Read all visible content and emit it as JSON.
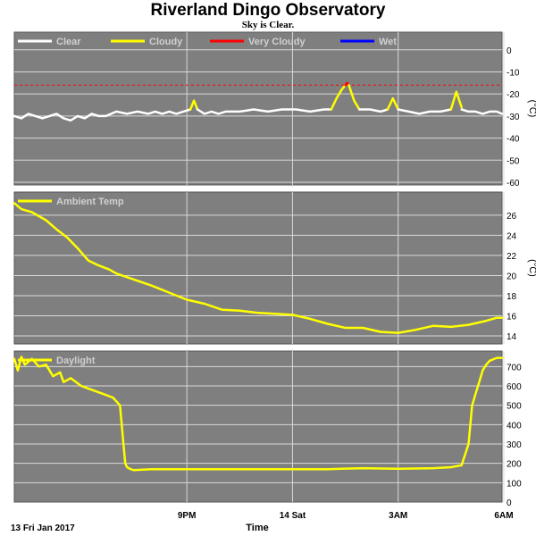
{
  "title": "Riverland Dingo Observatory",
  "subtitle": "Sky is Clear.",
  "colors": {
    "panel_bg": "#7f7f7f",
    "grid": "#d8d8d8",
    "clear": "#ffffff",
    "cloudy": "#ffff00",
    "very_cloudy": "#ff0000",
    "wet": "#0000ff",
    "legend_text": "#d0d0d0"
  },
  "time_axis": {
    "label": "Time",
    "start_label": "13 Fri Jan 2017",
    "tick_labels": [
      {
        "hour": 3,
        "label": "9PM"
      },
      {
        "hour": 6,
        "label": "14 Sat"
      },
      {
        "hour": 9,
        "label": "3AM"
      },
      {
        "hour": 12,
        "label": "6AM"
      }
    ],
    "hours_range": [
      -1.9,
      11.95
    ]
  },
  "chart_data": [
    {
      "type": "line",
      "name": "sky",
      "ylabel": "(°C)",
      "ylim": [
        -60,
        8
      ],
      "yticks": [
        0,
        -10,
        -20,
        -30,
        -40,
        -50,
        -60
      ],
      "grid": true,
      "legend_position": "top-left",
      "legend": [
        {
          "label": "Clear",
          "color": "#ffffff"
        },
        {
          "label": "Cloudy",
          "color": "#ffff00"
        },
        {
          "label": "Very Cloudy",
          "color": "#ff0000"
        },
        {
          "label": "Wet",
          "color": "#0000ff"
        }
      ],
      "threshold": {
        "value": -16,
        "color": "#ff0000",
        "style": "dashed"
      },
      "series": [
        {
          "status": "clear",
          "x": [
            -1.9,
            -1.7,
            -1.5,
            -1.3,
            -1.1,
            -0.9,
            -0.7,
            -0.5,
            -0.3,
            -0.1,
            0.1,
            0.3,
            0.5,
            0.7,
            1.0,
            1.3,
            1.6,
            1.9,
            2.1,
            2.3,
            2.5,
            2.7,
            2.9,
            3.1
          ],
          "y": [
            -30,
            -31,
            -29,
            -30,
            -31,
            -30,
            -29,
            -31,
            -32,
            -30,
            -31,
            -29,
            -30,
            -30,
            -28,
            -29,
            -28,
            -29,
            -28,
            -29,
            -28,
            -29,
            -28,
            -27
          ]
        },
        {
          "status": "cloudy",
          "x": [
            3.1,
            3.2,
            3.3
          ],
          "y": [
            -27,
            -23,
            -27
          ]
        },
        {
          "status": "clear",
          "x": [
            3.3,
            3.5,
            3.7,
            3.9,
            4.1,
            4.5,
            4.9,
            5.3,
            5.7,
            6.1,
            6.5,
            6.9,
            7.1
          ],
          "y": [
            -27,
            -29,
            -28,
            -29,
            -28,
            -28,
            -27,
            -28,
            -27,
            -27,
            -28,
            -27,
            -27
          ]
        },
        {
          "status": "cloudy",
          "x": [
            7.1,
            7.25,
            7.4,
            7.5
          ],
          "y": [
            -27,
            -22,
            -18,
            -16
          ]
        },
        {
          "status": "very_cloudy",
          "x": [
            7.5,
            7.55,
            7.6
          ],
          "y": [
            -16,
            -15,
            -16
          ]
        },
        {
          "status": "cloudy",
          "x": [
            7.6,
            7.75,
            7.9
          ],
          "y": [
            -16,
            -23,
            -27
          ]
        },
        {
          "status": "clear",
          "x": [
            7.9,
            8.2,
            8.5,
            8.7
          ],
          "y": [
            -27,
            -27,
            -28,
            -27
          ]
        },
        {
          "status": "cloudy",
          "x": [
            8.7,
            8.85,
            9.0
          ],
          "y": [
            -27,
            -22,
            -27
          ]
        },
        {
          "status": "clear",
          "x": [
            9.0,
            9.3,
            9.6,
            9.9,
            10.2,
            10.5
          ],
          "y": [
            -27,
            -28,
            -29,
            -28,
            -28,
            -27
          ]
        },
        {
          "status": "cloudy",
          "x": [
            10.5,
            10.65,
            10.8
          ],
          "y": [
            -27,
            -19,
            -26
          ]
        },
        {
          "status": "clear",
          "x": [
            10.8,
            11.0,
            11.2,
            11.4,
            11.6,
            11.8,
            11.95
          ],
          "y": [
            -27,
            -28,
            -28,
            -29,
            -28,
            -28,
            -29
          ]
        }
      ]
    },
    {
      "type": "line",
      "name": "ambient",
      "ylabel": "(°C)",
      "ylim": [
        13.2,
        28.3
      ],
      "yticks": [
        14,
        16,
        18,
        20,
        22,
        24,
        26
      ],
      "grid": true,
      "legend_position": "top-left",
      "legend": [
        {
          "label": "Ambient Temp",
          "color": "#ffff00"
        }
      ],
      "series": [
        {
          "name": "Ambient Temp",
          "color": "#ffff00",
          "x": [
            -1.9,
            -1.7,
            -1.4,
            -1.0,
            -0.7,
            -0.4,
            -0.1,
            0.2,
            0.5,
            0.8,
            1.0,
            1.5,
            2.0,
            2.5,
            3.0,
            3.5,
            4.0,
            4.5,
            5.0,
            5.5,
            6.0,
            6.5,
            7.0,
            7.5,
            8.0,
            8.5,
            9.0,
            9.5,
            10.0,
            10.5,
            11.0,
            11.5,
            11.8,
            11.95
          ],
          "y": [
            27.2,
            26.6,
            26.3,
            25.5,
            24.6,
            23.8,
            22.7,
            21.5,
            21.0,
            20.6,
            20.2,
            19.6,
            19.0,
            18.3,
            17.6,
            17.2,
            16.6,
            16.5,
            16.3,
            16.2,
            16.1,
            15.7,
            15.2,
            14.8,
            14.8,
            14.4,
            14.3,
            14.6,
            15.0,
            14.9,
            15.1,
            15.5,
            15.8,
            15.8
          ]
        }
      ]
    },
    {
      "type": "line",
      "name": "daylight",
      "ylabel": "",
      "ylim": [
        0,
        780
      ],
      "yticks": [
        0,
        100,
        200,
        300,
        400,
        500,
        600,
        700
      ],
      "grid": true,
      "legend_position": "top-left",
      "legend": [
        {
          "label": "Daylight",
          "color": "#ffff00"
        }
      ],
      "series": [
        {
          "name": "Daylight",
          "color": "#ffff00",
          "x": [
            -1.9,
            -1.8,
            -1.7,
            -1.6,
            -1.4,
            -1.2,
            -1.0,
            -0.8,
            -0.6,
            -0.5,
            -0.3,
            0.0,
            0.3,
            0.6,
            0.9,
            1.1,
            1.2,
            1.25,
            1.3,
            1.4,
            1.5,
            2.0,
            3.0,
            4.0,
            5.0,
            6.0,
            7.0,
            8.0,
            9.0,
            10.0,
            10.5,
            10.8,
            11.0,
            11.1,
            11.2,
            11.3,
            11.4,
            11.5,
            11.6,
            11.8,
            11.95
          ],
          "y": [
            740,
            680,
            750,
            710,
            740,
            700,
            710,
            650,
            670,
            620,
            640,
            600,
            580,
            560,
            540,
            500,
            300,
            200,
            180,
            170,
            165,
            170,
            170,
            170,
            170,
            170,
            170,
            175,
            172,
            175,
            180,
            190,
            300,
            500,
            560,
            620,
            680,
            710,
            730,
            745,
            745
          ]
        }
      ]
    }
  ]
}
